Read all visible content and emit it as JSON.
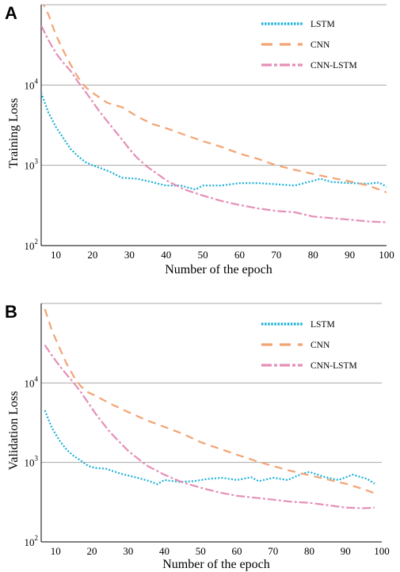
{
  "chart_data": [
    {
      "panel": "A",
      "type": "line",
      "xlabel": "Number of the epoch",
      "ylabel": "Training Loss",
      "xlim": [
        6,
        100
      ],
      "ylim": [
        100,
        100000
      ],
      "yscale": "log",
      "xticks": [
        10,
        20,
        30,
        40,
        50,
        60,
        70,
        80,
        90,
        100
      ],
      "yticks": [
        {
          "base": "10",
          "exp": "2",
          "value": 100
        },
        {
          "base": "10",
          "exp": "3",
          "value": 1000
        },
        {
          "base": "10",
          "exp": "4",
          "value": 10000
        }
      ],
      "grid": "horizontal",
      "legend": "top-right",
      "series": [
        {
          "name": "LSTM",
          "color": "#1ab0d8",
          "style": "dotted",
          "x": [
            6,
            8,
            10,
            12,
            14,
            16,
            18,
            20,
            22,
            25,
            28,
            32,
            36,
            40,
            44,
            48,
            50,
            55,
            60,
            65,
            70,
            75,
            80,
            82,
            85,
            90,
            95,
            98,
            100
          ],
          "y": [
            8000,
            4500,
            3000,
            2200,
            1600,
            1300,
            1100,
            1000,
            930,
            820,
            700,
            680,
            620,
            560,
            560,
            500,
            560,
            560,
            600,
            600,
            580,
            560,
            640,
            680,
            620,
            600,
            590,
            610,
            540
          ]
        },
        {
          "name": "CNN",
          "color": "#f2a474",
          "style": "dashed",
          "x": [
            6,
            8,
            10,
            12,
            14,
            16,
            18,
            20,
            24,
            28,
            32,
            36,
            40,
            45,
            50,
            55,
            60,
            65,
            70,
            75,
            80,
            85,
            90,
            95,
            100
          ],
          "y": [
            115000,
            75000,
            42000,
            27000,
            18000,
            12500,
            9500,
            8000,
            6000,
            5300,
            4100,
            3300,
            2900,
            2400,
            2000,
            1700,
            1400,
            1200,
            1000,
            880,
            780,
            700,
            630,
            560,
            460
          ]
        },
        {
          "name": "CNN-LSTM",
          "color": "#e58fb8",
          "style": "dashdot",
          "x": [
            6,
            8,
            10,
            12,
            14,
            16,
            18,
            20,
            22,
            25,
            28,
            30,
            32,
            35,
            38,
            40,
            45,
            50,
            55,
            60,
            65,
            70,
            75,
            80,
            85,
            90,
            95,
            100
          ],
          "y": [
            55000,
            36000,
            25000,
            19000,
            15000,
            11000,
            8300,
            6200,
            4600,
            3100,
            2100,
            1600,
            1250,
            950,
            760,
            650,
            500,
            420,
            360,
            320,
            290,
            270,
            260,
            230,
            220,
            210,
            200,
            195
          ]
        }
      ]
    },
    {
      "panel": "B",
      "type": "line",
      "xlabel": "Number of the epoch",
      "ylabel": "Validation Loss",
      "xlim": [
        6,
        100
      ],
      "ylim": [
        100,
        100000
      ],
      "yscale": "log",
      "xticks": [
        10,
        20,
        30,
        40,
        50,
        60,
        70,
        80,
        90,
        100
      ],
      "yticks": [
        {
          "base": "10",
          "exp": "2",
          "value": 100
        },
        {
          "base": "10",
          "exp": "3",
          "value": 1000
        },
        {
          "base": "10",
          "exp": "4",
          "value": 10000
        }
      ],
      "grid": "horizontal",
      "legend": "top-right",
      "series": [
        {
          "name": "LSTM",
          "color": "#1ab0d8",
          "style": "dotted",
          "x": [
            7,
            9,
            11,
            13,
            15,
            17,
            19,
            21,
            24,
            28,
            32,
            36,
            38,
            40,
            44,
            48,
            52,
            56,
            60,
            64,
            66,
            70,
            74,
            78,
            80,
            84,
            88,
            92,
            96,
            98
          ],
          "y": [
            4500,
            2700,
            1900,
            1450,
            1200,
            1050,
            900,
            850,
            830,
            720,
            650,
            580,
            530,
            600,
            570,
            580,
            620,
            640,
            600,
            650,
            580,
            640,
            600,
            720,
            760,
            660,
            600,
            700,
            620,
            540
          ]
        },
        {
          "name": "CNN",
          "color": "#f2a474",
          "style": "dashed",
          "x": [
            7,
            9,
            11,
            13,
            15,
            17,
            19,
            21,
            25,
            30,
            35,
            40,
            45,
            50,
            55,
            60,
            65,
            70,
            75,
            80,
            85,
            90,
            95,
            98
          ],
          "y": [
            85000,
            45000,
            28000,
            17500,
            12000,
            9000,
            7600,
            6900,
            5500,
            4300,
            3400,
            2800,
            2300,
            1800,
            1500,
            1250,
            1050,
            900,
            780,
            690,
            610,
            540,
            460,
            410
          ]
        },
        {
          "name": "CNN-LSTM",
          "color": "#e58fb8",
          "style": "dashdot",
          "x": [
            7,
            9,
            11,
            13,
            15,
            17,
            19,
            21,
            25,
            30,
            35,
            40,
            45,
            50,
            55,
            60,
            65,
            70,
            75,
            80,
            85,
            90,
            95,
            98
          ],
          "y": [
            30000,
            22000,
            16500,
            12800,
            10000,
            7600,
            5600,
            4100,
            2400,
            1400,
            920,
            700,
            560,
            480,
            420,
            380,
            360,
            340,
            320,
            310,
            290,
            270,
            265,
            270
          ]
        }
      ]
    }
  ]
}
